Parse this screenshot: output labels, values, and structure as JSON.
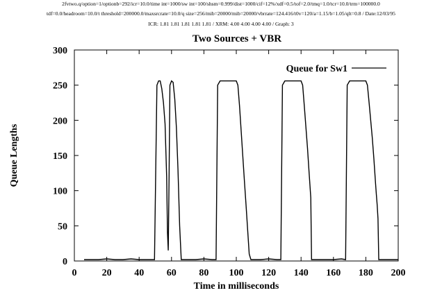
{
  "header": {
    "line1": "2fvtwo.q/option=1/optionb=292/icr=10.0/time int=1000/sw int=100/shsm=0.999/dist=1000/cif=12%/xdf=0.5/tof=2.0/tmq=1.0/tcr=10.0/trm=100000.0",
    "line2": "tdf=0.0/headroom=10.0/t threshold=200000.0/maxsrcrate=10.0/q size=256/mib=20000/mib=20000/vbrrate=124.416/t0v=120/a=1.15/b=1.05/qlt=0.8 / Date:12/03/95",
    "line3": "ICR: 1.81 1.81 1.81 1.81 1.81 / XRM: 4.00 4.00 4.00 4.00 / Graph: 3"
  },
  "chart_data": {
    "type": "line",
    "title": "Two Sources + VBR",
    "xlabel": "Time in milliseconds",
    "ylabel": "Queue Lengths",
    "xlim": [
      0,
      200
    ],
    "ylim": [
      0,
      300
    ],
    "xticks": [
      0,
      20,
      40,
      60,
      80,
      100,
      120,
      140,
      160,
      180,
      200
    ],
    "yticks": [
      0,
      50,
      100,
      150,
      200,
      250,
      300
    ],
    "grid": false,
    "legend_position": "top-right",
    "line_color": "#000000",
    "series": [
      {
        "name": "Queue for Sw1",
        "x": [
          6,
          10,
          15,
          20,
          25,
          30,
          35,
          40,
          45,
          49.5,
          51,
          52,
          53,
          54,
          55,
          56,
          57,
          57.5,
          58,
          58.5,
          59,
          60,
          61,
          62,
          63,
          64,
          65,
          66,
          70,
          75,
          80,
          85,
          87.5,
          88.5,
          90,
          95,
          100,
          101,
          102,
          103,
          104,
          105,
          106,
          107,
          108,
          109,
          115,
          120,
          125,
          127.5,
          128.5,
          130,
          135,
          140,
          141,
          142,
          143,
          144,
          145,
          146,
          146.5,
          150,
          155,
          160,
          165,
          167.5,
          168.5,
          170,
          175,
          180,
          181,
          182,
          183,
          184,
          185,
          186,
          186.5,
          187,
          187.5,
          188,
          190,
          195,
          200
        ],
        "y": [
          2,
          2,
          2,
          3,
          2,
          2,
          3,
          2,
          2,
          2,
          250,
          256,
          256,
          245,
          225,
          195,
          120,
          40,
          15,
          120,
          250,
          256,
          254,
          230,
          190,
          130,
          50,
          2,
          2,
          2,
          3,
          2,
          2,
          250,
          256,
          256,
          256,
          250,
          220,
          185,
          150,
          115,
          80,
          45,
          10,
          2,
          2,
          3,
          2,
          2,
          250,
          256,
          256,
          256,
          250,
          220,
          190,
          160,
          125,
          90,
          2,
          2,
          2,
          2,
          3,
          2,
          250,
          256,
          256,
          256,
          250,
          225,
          200,
          175,
          145,
          110,
          95,
          80,
          60,
          2,
          2,
          2,
          2
        ]
      }
    ]
  }
}
